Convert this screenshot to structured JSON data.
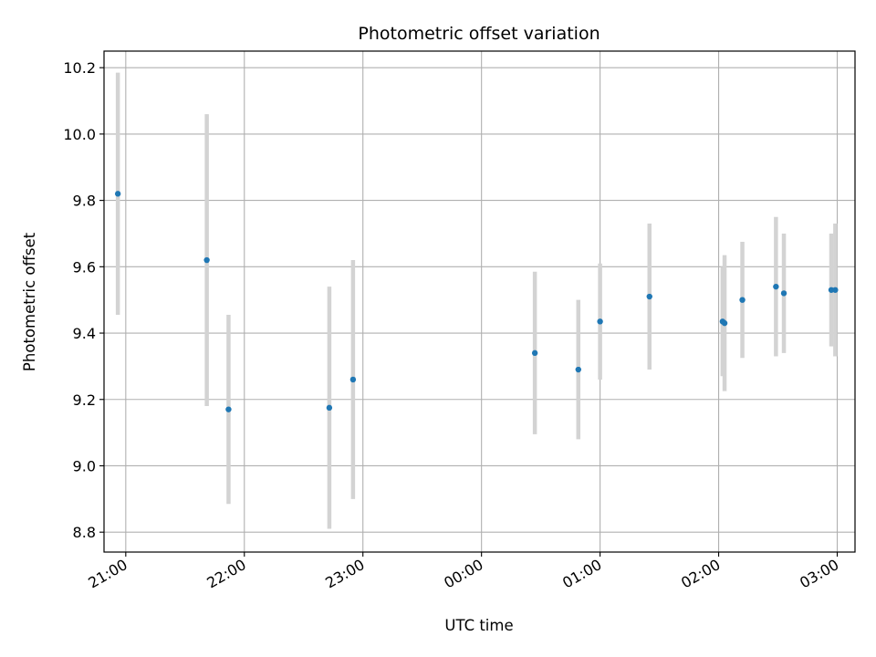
{
  "chart_data": {
    "type": "scatter",
    "title": "Photometric offset variation",
    "xlabel": "UTC time",
    "ylabel": "Photometric offset",
    "x_axis_type": "time",
    "xlim": [
      "20:49",
      "03:09"
    ],
    "ylim": [
      8.74,
      10.25
    ],
    "x_ticks": [
      "21:00",
      "22:00",
      "23:00",
      "00:00",
      "01:00",
      "02:00",
      "03:00"
    ],
    "y_ticks": [
      "8.8",
      "9.0",
      "9.2",
      "9.4",
      "9.6",
      "9.8",
      "10.0",
      "10.2"
    ],
    "grid": true,
    "marker_color": "#1f77b4",
    "errorbar_color": "#d3d3d3",
    "series": [
      {
        "points": [
          {
            "time": "20:56",
            "y": 9.82,
            "err": 0.365
          },
          {
            "time": "21:41",
            "y": 9.62,
            "err": 0.44
          },
          {
            "time": "21:52",
            "y": 9.17,
            "err": 0.285
          },
          {
            "time": "22:43",
            "y": 9.175,
            "err": 0.365
          },
          {
            "time": "22:55",
            "y": 9.26,
            "err": 0.36
          },
          {
            "time": "00:27",
            "y": 9.34,
            "err": 0.245
          },
          {
            "time": "00:49",
            "y": 9.29,
            "err": 0.21
          },
          {
            "time": "01:00",
            "y": 9.435,
            "err": 0.175
          },
          {
            "time": "01:25",
            "y": 9.51,
            "err": 0.22
          },
          {
            "time": "02:02",
            "y": 9.435,
            "err": 0.165
          },
          {
            "time": "02:03",
            "y": 9.43,
            "err": 0.205
          },
          {
            "time": "02:12",
            "y": 9.5,
            "err": 0.175
          },
          {
            "time": "02:29",
            "y": 9.54,
            "err": 0.21
          },
          {
            "time": "02:33",
            "y": 9.52,
            "err": 0.18
          },
          {
            "time": "02:57",
            "y": 9.53,
            "err": 0.17
          },
          {
            "time": "02:59",
            "y": 9.53,
            "err": 0.2
          }
        ]
      }
    ]
  }
}
